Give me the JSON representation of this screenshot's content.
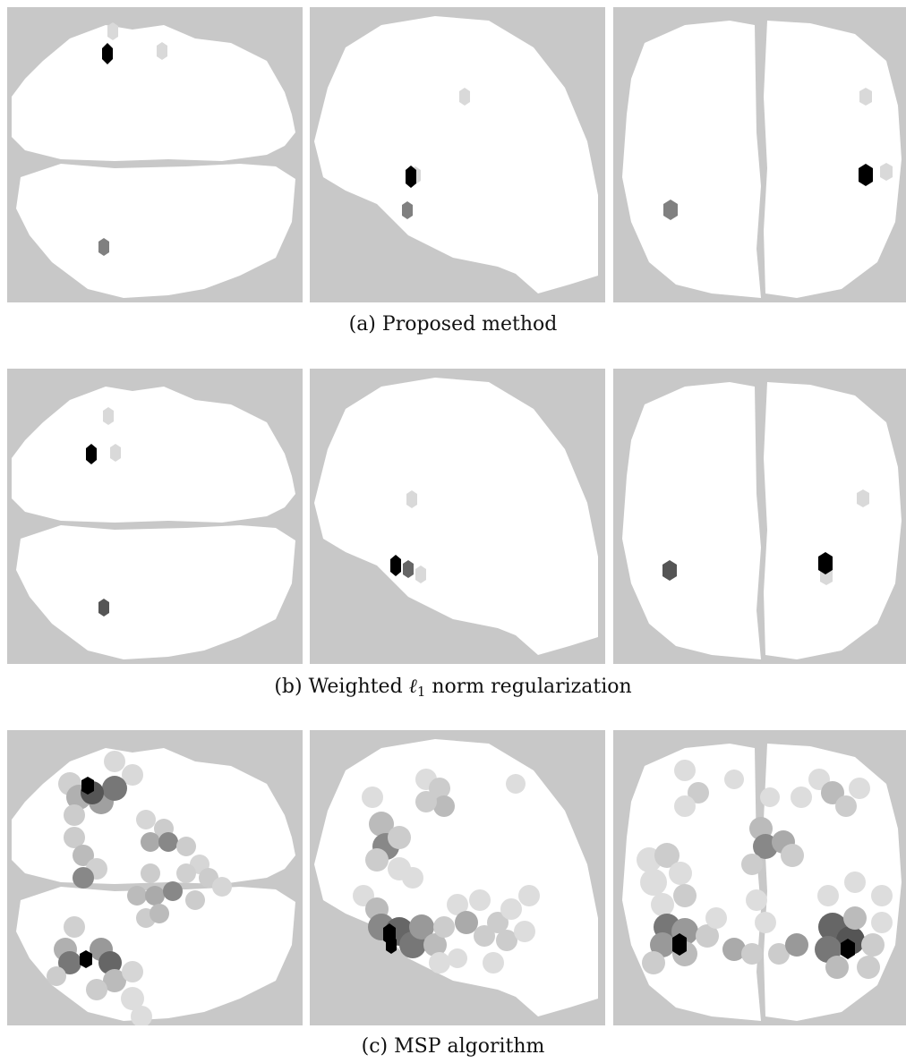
{
  "figure": {
    "rows": [
      {
        "caption": "(a) Proposed method"
      },
      {
        "caption_prefix": "(b) Weighted ",
        "caption_ell": "ℓ",
        "caption_sub": "1",
        "caption_suffix": " norm regularization"
      },
      {
        "caption": "(c) MSP algorithm"
      }
    ]
  },
  "colors": {
    "background": "#c8c8c8",
    "brain": "#ffffff",
    "strong_activation": "#000000"
  }
}
